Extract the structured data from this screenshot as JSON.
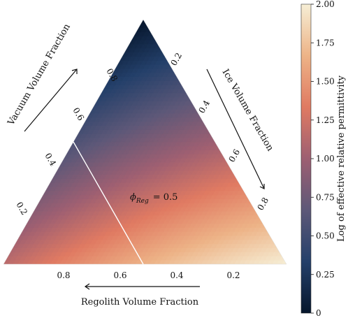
{
  "chart_data": {
    "type": "ternary-heatmap",
    "axes": {
      "left": {
        "label": "Vacuum Volume Fraction",
        "ticks": [
          "0.2",
          "0.4",
          "0.6",
          "0.8"
        ]
      },
      "right": {
        "label": "Ice Volume Fraction",
        "ticks": [
          "0.2",
          "0.4",
          "0.6",
          "0.8"
        ]
      },
      "bottom": {
        "label": "Regolith Volume Fraction",
        "ticks": [
          "0.8",
          "0.6",
          "0.4",
          "0.2"
        ]
      }
    },
    "annotation": {
      "symbol": "ϕ",
      "subscript": "Reg",
      "equals": "= 0.5"
    },
    "isoline": {
      "axis": "regolith",
      "value": 0.5,
      "color": "#ffffff"
    },
    "corner_values": {
      "vacuum": 0.0,
      "regolith": 1.15,
      "ice": 2.0
    },
    "colorbar": {
      "label": "Log of effective relative permittivity",
      "min": 0,
      "max": 2.0,
      "ticks": [
        "0",
        "0.25",
        "0.50",
        "0.75",
        "1.00",
        "1.25",
        "1.50",
        "1.75",
        "2.00"
      ],
      "colormap": [
        "#06162c",
        "#24406a",
        "#5d5878",
        "#9d5f72",
        "#e07a62",
        "#edb387",
        "#f6eed5"
      ]
    },
    "grid": false
  }
}
